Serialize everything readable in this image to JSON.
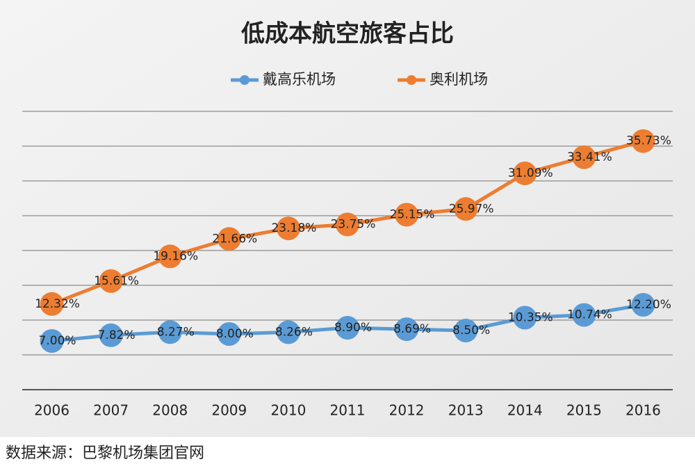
{
  "chart_data": {
    "type": "line",
    "title": "低成本航空旅客占比",
    "categories": [
      "2006",
      "2007",
      "2008",
      "2009",
      "2010",
      "2011",
      "2012",
      "2013",
      "2014",
      "2015",
      "2016"
    ],
    "series": [
      {
        "name": "戴高乐机场",
        "color": "#5b9bd5",
        "values": [
          7.0,
          7.82,
          8.27,
          8.0,
          8.26,
          8.9,
          8.69,
          8.5,
          10.35,
          10.74,
          12.2
        ],
        "value_labels": [
          "7.00%",
          "7.82%",
          "8.27%",
          "8.00%",
          "8.26%",
          "8.90%",
          "8.69%",
          "8.50%",
          "10.35%",
          "10.74%",
          "12.20%"
        ]
      },
      {
        "name": "奥利机场",
        "color": "#ed7d31",
        "values": [
          12.32,
          15.61,
          19.16,
          21.66,
          23.18,
          23.75,
          25.15,
          25.97,
          31.09,
          33.41,
          35.73
        ],
        "value_labels": [
          "12.32%",
          "15.61%",
          "19.16%",
          "21.66%",
          "23.18%",
          "23.75%",
          "25.15%",
          "25.97%",
          "31.09%",
          "33.41%",
          "35.73%"
        ]
      }
    ],
    "ylim": [
      0,
      40
    ],
    "yticks": [
      0,
      5,
      10,
      15,
      20,
      25,
      30,
      35,
      40
    ],
    "grid": true,
    "legend": "top"
  },
  "source": "数据来源：巴黎机场集团官网"
}
